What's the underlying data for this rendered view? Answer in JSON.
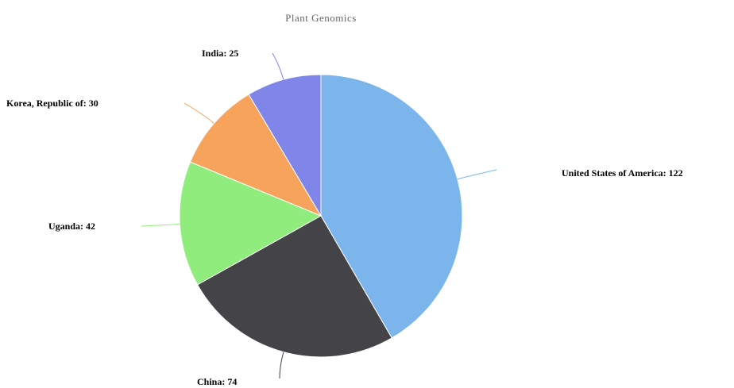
{
  "chart_data": {
    "type": "pie",
    "title": "",
    "subtitle": "Plant Genomics",
    "slices": [
      {
        "label": "United States of America",
        "value": 122,
        "color": "#7cb5ec"
      },
      {
        "label": "China",
        "value": 74,
        "color": "#434348"
      },
      {
        "label": "Uganda",
        "value": 42,
        "color": "#90ed7d"
      },
      {
        "label": "Korea, Republic of",
        "value": 30,
        "color": "#f7a35c"
      },
      {
        "label": "India",
        "value": 25,
        "color": "#8085e9"
      }
    ]
  }
}
